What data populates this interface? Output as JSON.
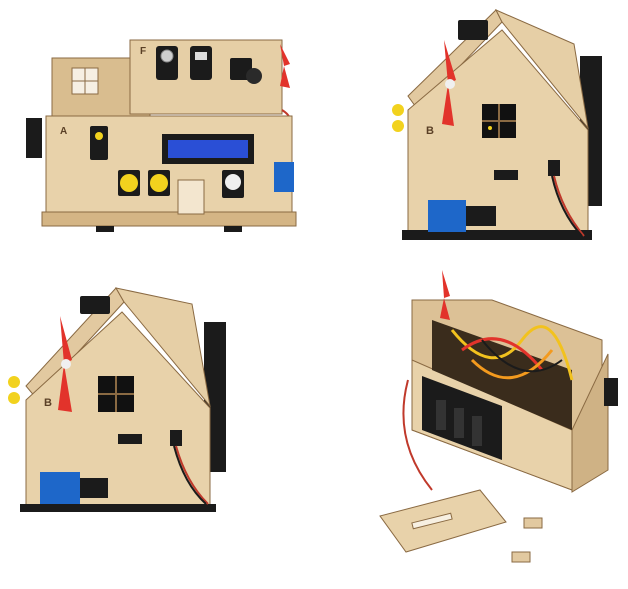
{
  "photos": [
    {
      "view": "front",
      "panel_letters": [
        "F",
        "A"
      ]
    },
    {
      "view": "side-right",
      "panel_letters": [
        "B"
      ]
    },
    {
      "view": "side-left",
      "panel_letters": [
        "B"
      ]
    },
    {
      "view": "open-interior",
      "panel_letters": []
    }
  ],
  "labels": {
    "front_top": "F",
    "front_left": "A",
    "side_b1": "B",
    "side_b2": "B"
  },
  "colors": {
    "plywood": "#e2c9a0",
    "plywood_dark": "#c9a97a",
    "plywood_edge": "#8a6a43",
    "fan_red": "#e2332b",
    "lcd_blue": "#2a4fd6",
    "button_yellow": "#f2d21e",
    "relay_blue": "#1e67c9",
    "pcb_black": "#1b1b1b"
  }
}
